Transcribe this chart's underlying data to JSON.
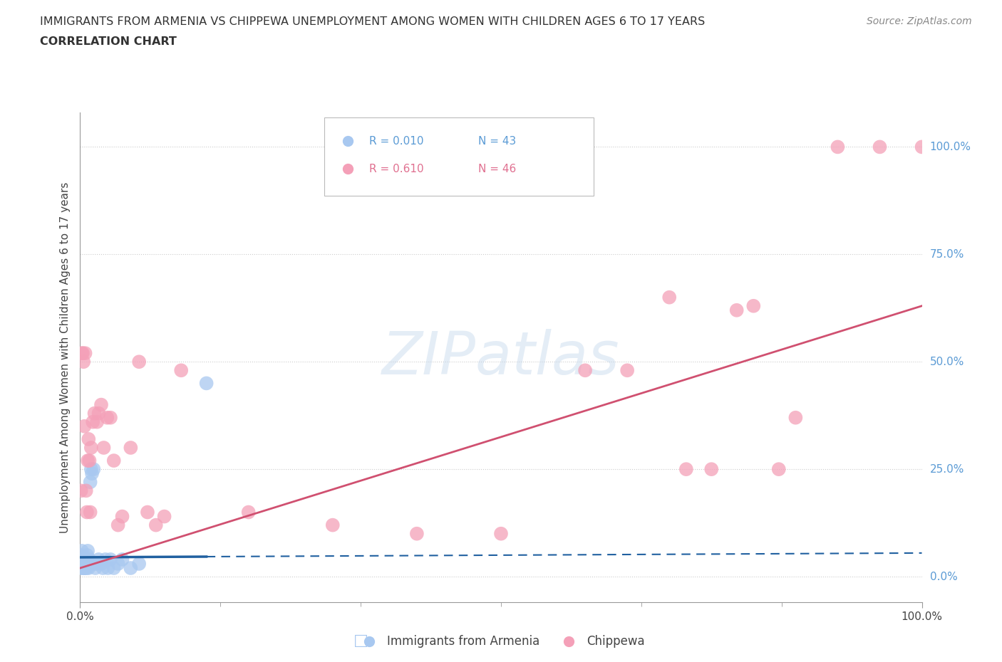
{
  "title_line1": "IMMIGRANTS FROM ARMENIA VS CHIPPEWA UNEMPLOYMENT AMONG WOMEN WITH CHILDREN AGES 6 TO 17 YEARS",
  "title_line2": "CORRELATION CHART",
  "source_text": "Source: ZipAtlas.com",
  "ylabel": "Unemployment Among Women with Children Ages 6 to 17 years",
  "watermark": "ZIPatlas",
  "legend_r1": "R = 0.010",
  "legend_n1": "N = 43",
  "legend_r2": "R = 0.610",
  "legend_n2": "N = 46",
  "legend_color1": "#5b9bd5",
  "legend_color2": "#e07090",
  "armenia_dot_color": "#a8c8f0",
  "chippewa_dot_color": "#f4a0b8",
  "armenia_line_color": "#2060a0",
  "chippewa_line_color": "#d05070",
  "right_label_color": "#5b9bd5",
  "grid_color": "#cccccc",
  "bg_color": "#ffffff",
  "title_color": "#333333",
  "armenia_x": [
    0.001,
    0.001,
    0.002,
    0.002,
    0.002,
    0.003,
    0.003,
    0.003,
    0.004,
    0.004,
    0.005,
    0.005,
    0.006,
    0.006,
    0.007,
    0.007,
    0.008,
    0.008,
    0.009,
    0.009,
    0.01,
    0.01,
    0.011,
    0.012,
    0.013,
    0.014,
    0.015,
    0.016,
    0.017,
    0.018,
    0.02,
    0.022,
    0.025,
    0.027,
    0.03,
    0.033,
    0.036,
    0.04,
    0.045,
    0.05,
    0.06,
    0.07,
    0.15
  ],
  "armenia_y": [
    0.02,
    0.05,
    0.03,
    0.04,
    0.06,
    0.02,
    0.03,
    0.04,
    0.02,
    0.03,
    0.02,
    0.04,
    0.02,
    0.03,
    0.03,
    0.04,
    0.02,
    0.05,
    0.03,
    0.06,
    0.02,
    0.03,
    0.04,
    0.22,
    0.25,
    0.24,
    0.03,
    0.25,
    0.03,
    0.02,
    0.03,
    0.04,
    0.03,
    0.02,
    0.04,
    0.02,
    0.04,
    0.02,
    0.03,
    0.04,
    0.02,
    0.03,
    0.45
  ],
  "chippewa_x": [
    0.001,
    0.002,
    0.003,
    0.004,
    0.005,
    0.006,
    0.007,
    0.008,
    0.009,
    0.01,
    0.011,
    0.012,
    0.013,
    0.015,
    0.017,
    0.02,
    0.022,
    0.025,
    0.028,
    0.032,
    0.036,
    0.04,
    0.045,
    0.05,
    0.06,
    0.07,
    0.08,
    0.09,
    0.1,
    0.12,
    0.2,
    0.3,
    0.4,
    0.5,
    0.6,
    0.65,
    0.7,
    0.72,
    0.75,
    0.78,
    0.8,
    0.83,
    0.85,
    0.9,
    0.95,
    1.0
  ],
  "chippewa_y": [
    0.2,
    0.52,
    0.52,
    0.5,
    0.35,
    0.52,
    0.2,
    0.15,
    0.27,
    0.32,
    0.27,
    0.15,
    0.3,
    0.36,
    0.38,
    0.36,
    0.38,
    0.4,
    0.3,
    0.37,
    0.37,
    0.27,
    0.12,
    0.14,
    0.3,
    0.5,
    0.15,
    0.12,
    0.14,
    0.48,
    0.15,
    0.12,
    0.1,
    0.1,
    0.48,
    0.48,
    0.65,
    0.25,
    0.25,
    0.62,
    0.63,
    0.25,
    0.37,
    1.0,
    1.0,
    1.0
  ],
  "armenia_line_x0": 0.0,
  "armenia_line_x1": 1.0,
  "armenia_line_y0": 0.045,
  "armenia_line_y1": 0.055,
  "chippewa_line_x0": 0.0,
  "chippewa_line_x1": 1.0,
  "chippewa_line_y0": 0.02,
  "chippewa_line_y1": 0.63,
  "xlim": [
    0.0,
    1.0
  ],
  "ylim": [
    -0.06,
    1.08
  ],
  "ytick_positions": [
    0.0,
    0.25,
    0.5,
    0.75,
    1.0
  ],
  "ytick_labels_right": [
    "0.0%",
    "25.0%",
    "50.0%",
    "75.0%",
    "100.0%"
  ]
}
